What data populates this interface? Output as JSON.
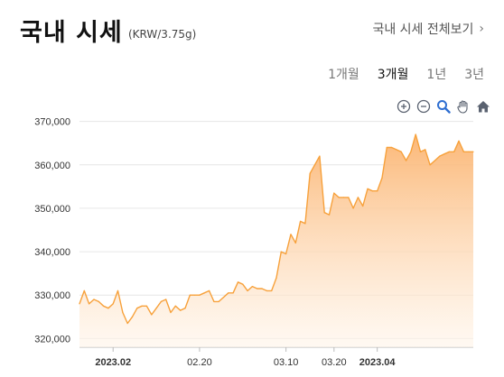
{
  "header": {
    "title": "국내 시세",
    "unit": "(KRW/3.75g)",
    "all_link": "국내 시세 전체보기",
    "chevron": "›"
  },
  "periods": [
    {
      "label": "1개월",
      "active": false
    },
    {
      "label": "3개월",
      "active": true
    },
    {
      "label": "1년",
      "active": false
    },
    {
      "label": "3년",
      "active": false
    }
  ],
  "toolbar": {
    "icons": [
      "zoom-in-icon",
      "zoom-out-icon",
      "magnifier-icon",
      "pan-hand-icon",
      "home-icon"
    ]
  },
  "colors": {
    "line": "#f7a13b",
    "fill_top": "#fbb470",
    "fill_bottom": "#fff5ea",
    "grid": "#e6e6e6"
  },
  "chart_data": {
    "type": "area",
    "title": "",
    "xlabel": "",
    "ylabel": "",
    "ylim": [
      318000,
      372000
    ],
    "y_ticks": [
      "370,000",
      "360,000",
      "350,000",
      "340,000",
      "330,000",
      "320,000"
    ],
    "y_tick_values": [
      370000,
      360000,
      350000,
      340000,
      330000,
      320000
    ],
    "x_ticks": [
      {
        "label": "2023.02",
        "bold": true,
        "i": 7
      },
      {
        "label": "02.20",
        "bold": false,
        "i": 25
      },
      {
        "label": "03.10",
        "bold": false,
        "i": 43
      },
      {
        "label": "03.20",
        "bold": false,
        "i": 53
      },
      {
        "label": "2023.04",
        "bold": true,
        "i": 62
      }
    ],
    "grid": true,
    "series": [
      {
        "values": [
          328000,
          331000,
          328000,
          329000,
          328500,
          327500,
          327000,
          328000,
          331000,
          326000,
          323500,
          325000,
          327000,
          327500,
          327500,
          325500,
          327000,
          328500,
          329000,
          326000,
          327500,
          326500,
          327000,
          330000,
          330000,
          330000,
          330500,
          331000,
          328500,
          328500,
          329500,
          330500,
          330500,
          333000,
          332500,
          331000,
          332000,
          331500,
          331500,
          331000,
          331000,
          334000,
          340000,
          339500,
          344000,
          342000,
          347000,
          346500,
          358000,
          360000,
          362000,
          349000,
          348500,
          353500,
          352500,
          352500,
          352500,
          350000,
          352500,
          350500,
          354500,
          354000,
          354000,
          357000,
          364000,
          364000,
          363500,
          363000,
          361000,
          363000,
          367000,
          363000,
          363500,
          360000,
          361000,
          362000,
          362500,
          363000,
          363000,
          365500,
          363000,
          363000,
          363000
        ]
      }
    ]
  }
}
